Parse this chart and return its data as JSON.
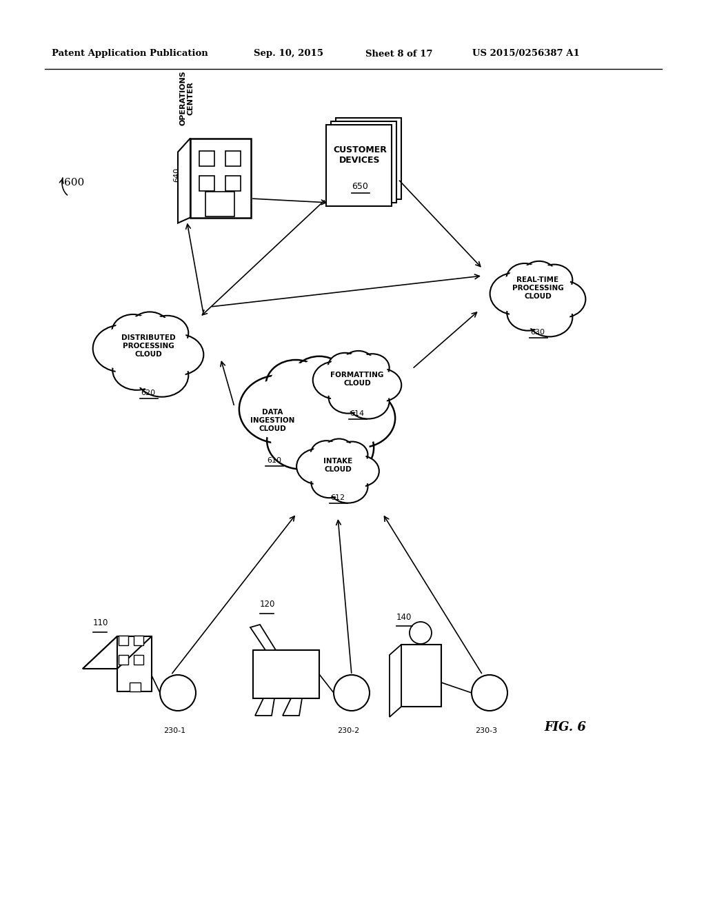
{
  "bg_color": "#ffffff",
  "header_text": "Patent Application Publication",
  "header_date": "Sep. 10, 2015",
  "header_sheet": "Sheet 8 of 17",
  "header_patent": "US 2015/0256387 A1",
  "fig_label": "FIG. 6",
  "diagram_num": "600"
}
